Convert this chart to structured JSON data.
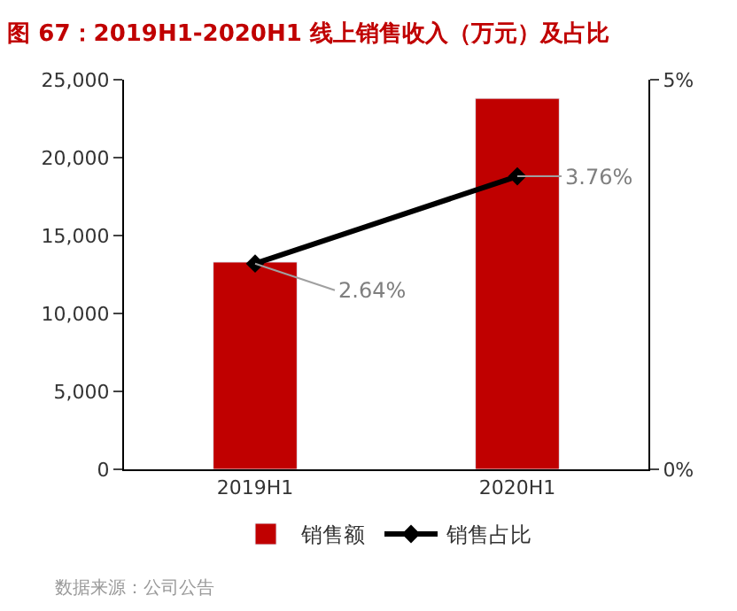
{
  "chart_data": {
    "type": "bar",
    "title": "图 67：2019H1-2020H1 线上销售收入（万元）及占比",
    "categories": [
      "2019H1",
      "2020H1"
    ],
    "series": [
      {
        "name": "销售额",
        "color": "#c00000",
        "values": [
          13300,
          23800
        ]
      },
      {
        "name": "销售占比",
        "type": "line",
        "axis": "y2",
        "color": "#000000",
        "values": [
          2.64,
          3.76
        ],
        "value_labels": [
          "2.64%",
          "3.76%"
        ],
        "marker": "diamond"
      }
    ],
    "ylim": [
      0,
      25000
    ],
    "yticks": [
      {
        "value": 0,
        "label": "0"
      },
      {
        "value": 5000,
        "label": "5,000"
      },
      {
        "value": 10000,
        "label": "10,000"
      },
      {
        "value": 15000,
        "label": "15,000"
      },
      {
        "value": 20000,
        "label": "20,000"
      },
      {
        "value": 25000,
        "label": "25,000"
      }
    ],
    "y2lim": [
      0,
      5
    ],
    "y2ticks": [
      {
        "value": 0,
        "label": "0%"
      },
      {
        "value": 5,
        "label": "5%"
      }
    ],
    "legend": "bottom",
    "annotations": [
      "数据来源：公司公告"
    ]
  }
}
